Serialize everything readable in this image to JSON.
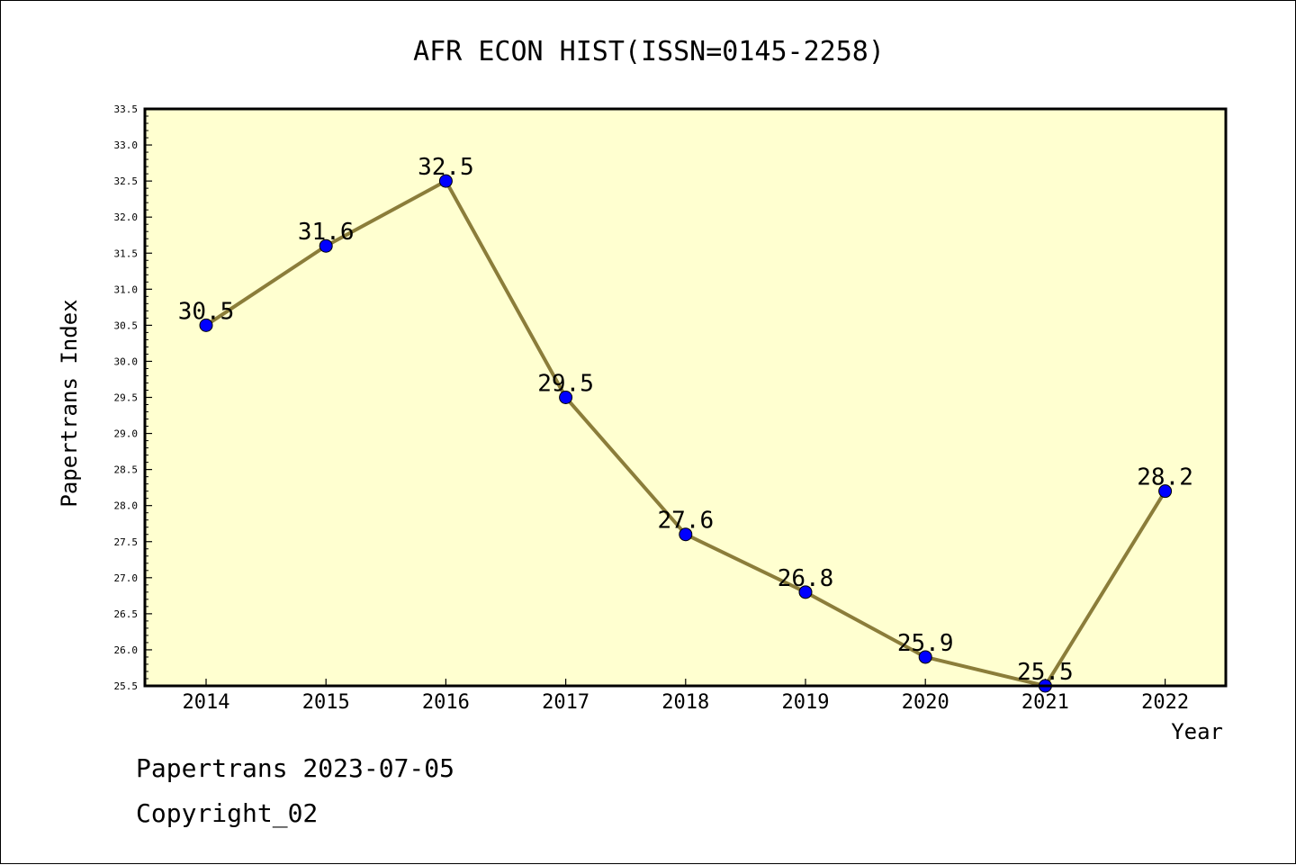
{
  "chart_data": {
    "type": "line",
    "title": "AFR ECON HIST(ISSN=0145-2258)",
    "xlabel": "Year",
    "ylabel": "Papertrans Index",
    "categories": [
      "2014",
      "2015",
      "2016",
      "2017",
      "2018",
      "2019",
      "2020",
      "2021",
      "2022"
    ],
    "series": [
      {
        "values": [
          30.5,
          31.6,
          32.5,
          29.5,
          27.6,
          26.8,
          25.9,
          25.5,
          28.2
        ]
      }
    ],
    "data_labels": [
      "30.5",
      "31.6",
      "32.5",
      "29.5",
      "27.6",
      "26.8",
      "25.9",
      "25.5",
      "28.2"
    ],
    "ylim": [
      25.5,
      33.5
    ],
    "yticks": [
      "25.5",
      "26.0",
      "26.5",
      "27.0",
      "27.5",
      "28.0",
      "28.5",
      "29.0",
      "29.5",
      "30.0",
      "30.5",
      "31.0",
      "31.5",
      "32.0",
      "32.5",
      "33.0",
      "33.5"
    ],
    "grid": false,
    "legend": "none",
    "colors": {
      "plot_background": "#ffffd0",
      "line": "#8b7d3a",
      "marker": "#0000ff"
    }
  },
  "footer": {
    "line1": "Papertrans 2023-07-05",
    "line2": "Copyright_02"
  }
}
